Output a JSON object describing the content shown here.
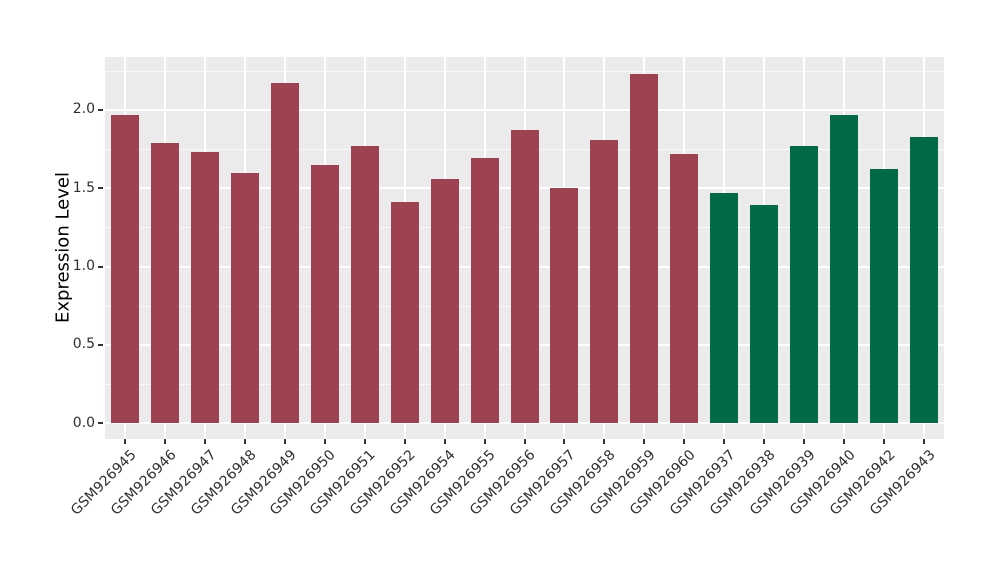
{
  "figure": {
    "background": "#FFFFFF"
  },
  "chart_data": {
    "type": "bar",
    "title": "",
    "xlabel": "",
    "ylabel": "Expression Level",
    "categories": [
      "GSM926945",
      "GSM926946",
      "GSM926947",
      "GSM926948",
      "GSM926949",
      "GSM926950",
      "GSM926951",
      "GSM926952",
      "GSM926954",
      "GSM926955",
      "GSM926956",
      "GSM926957",
      "GSM926958",
      "GSM926959",
      "GSM926960",
      "GSM926937",
      "GSM926938",
      "GSM926939",
      "GSM926940",
      "GSM926942",
      "GSM926943"
    ],
    "values": [
      1.97,
      1.79,
      1.73,
      1.6,
      2.17,
      1.65,
      1.77,
      1.41,
      1.56,
      1.69,
      1.87,
      1.5,
      1.81,
      2.23,
      1.72,
      1.47,
      1.39,
      1.77,
      1.97,
      1.62,
      1.83
    ],
    "bar_color_index": [
      0,
      0,
      0,
      0,
      0,
      0,
      0,
      0,
      0,
      0,
      0,
      0,
      0,
      0,
      0,
      1,
      1,
      1,
      1,
      1,
      1
    ],
    "palette": [
      "#9C4251",
      "#016946"
    ],
    "ytick_values": [
      0.0,
      0.5,
      1.0,
      1.5,
      2.0
    ],
    "ytick_labels": [
      "0.0",
      "0.5",
      "1.0",
      "1.5",
      "2.0"
    ],
    "ylim": [
      -0.1,
      2.34
    ],
    "grid": true,
    "legend_position": "none",
    "style": {
      "panel_background": "#EBEBEB",
      "gridline_major_color": "#FFFFFF",
      "gridline_minor_color": "#FFFFFF",
      "axis_text_color": "#303030",
      "axis_title_color": "#000000",
      "tick_mark_color": "#333333"
    }
  }
}
